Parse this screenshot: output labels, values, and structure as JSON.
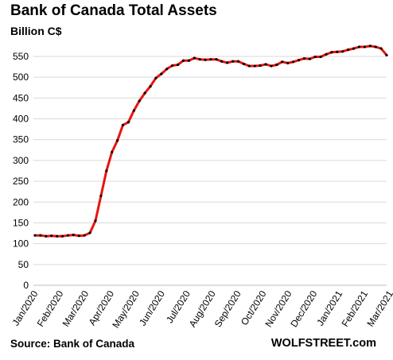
{
  "chart_data": {
    "type": "line",
    "title": "Bank of Canada Total Assets",
    "subtitle": "Billion C$",
    "ylabel": "",
    "xlabel": "",
    "ylim": [
      0,
      550
    ],
    "yticks": [
      0,
      50,
      100,
      150,
      200,
      250,
      300,
      350,
      400,
      450,
      500,
      550
    ],
    "x_tick_labels": [
      "Jan/2020",
      "Feb/2020",
      "Mar/2020",
      "Apr/2020",
      "May/2020",
      "Jun/2020",
      "Jul/2020",
      "Aug/2020",
      "Sep/2020",
      "Oct/2020",
      "Nov/2020",
      "Dec/2020",
      "Jan/2021",
      "Feb/2021",
      "Mar/2021"
    ],
    "grid": "horizontal",
    "legend": "none",
    "colors": {
      "line": "#e8140e",
      "marker": "#000000",
      "grid": "#d9d9d9"
    },
    "series": [
      {
        "values": [
          120,
          120,
          118,
          119,
          118,
          118,
          120,
          121,
          119,
          120,
          126,
          155,
          215,
          275,
          320,
          348,
          385,
          392,
          420,
          443,
          462,
          478,
          498,
          508,
          520,
          528,
          530,
          540,
          540,
          546,
          543,
          542,
          543,
          543,
          538,
          535,
          538,
          538,
          532,
          527,
          527,
          528,
          531,
          527,
          530,
          537,
          534,
          537,
          541,
          545,
          544,
          549,
          549,
          555,
          560,
          561,
          562,
          566,
          569,
          573,
          573,
          575,
          573,
          569,
          553
        ]
      }
    ]
  },
  "source": "Source: Bank of Canada",
  "brand": "WOLFSTREET.com"
}
